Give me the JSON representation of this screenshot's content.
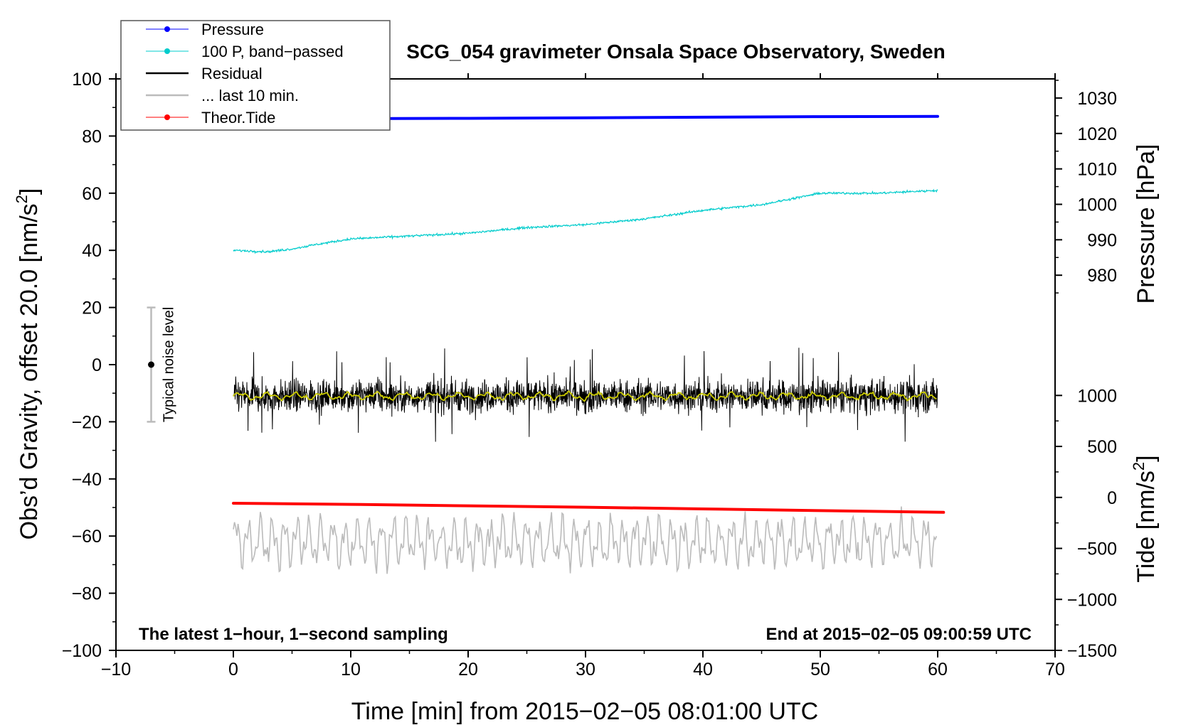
{
  "chart_data": {
    "type": "line",
    "title": "SCG_054 gravimeter Onsala Space Observatory, Sweden",
    "xlabel": "Time [min] from 2015−02−05 08:01:00 UTC",
    "ylabel_left_main": "Obs’d Gravity, offset 20.0 [nm/s",
    "ylabel_left_sup": "2",
    "ylabel_left_end": "]",
    "ylabel_right_pressure": "Pressure [hPa]",
    "ylabel_right_tide_main": "Tide [nm/s",
    "ylabel_right_tide_sup": "2",
    "ylabel_right_tide_end": "]",
    "xlim": [
      -10,
      70
    ],
    "ylim_left": [
      -100,
      100
    ],
    "x_ticks": [
      -10,
      0,
      10,
      20,
      30,
      40,
      50,
      60,
      70
    ],
    "x_tick_labels": [
      "−10",
      "0",
      "10",
      "20",
      "30",
      "40",
      "50",
      "60",
      "70"
    ],
    "y_left_ticks": [
      -100,
      -80,
      -60,
      -40,
      -20,
      0,
      20,
      40,
      60,
      80,
      100
    ],
    "y_left_tick_labels": [
      "−100",
      "−80",
      "−60",
      "−40",
      "−20",
      "0",
      "20",
      "40",
      "60",
      "80",
      "100"
    ],
    "pressure_axis_ticks": [
      980,
      990,
      1000,
      1010,
      1020,
      1030
    ],
    "pressure_axis_tick_labels": [
      "980",
      "990",
      "1000",
      "1010",
      "1020",
      "1030"
    ],
    "pressure_axis_range_hpa": [
      966,
      1037
    ],
    "tide_axis_ticks": [
      -1500,
      -1000,
      -500,
      0,
      500,
      1000
    ],
    "tide_axis_tick_labels": [
      "−1500",
      "−1000",
      "−500",
      "0",
      "500",
      "1000"
    ],
    "tide_axis_range": [
      -1500,
      1100
    ],
    "legend": [
      {
        "label": "Pressure",
        "color": "#0000ff",
        "marker": true
      },
      {
        "label": "100 P, band−passed",
        "color": "#00cccc",
        "marker": true
      },
      {
        "label": "Residual",
        "color": "#000000",
        "marker": false
      },
      {
        "label": "... last 10 min.",
        "color": "#bbbbbb",
        "marker": false
      },
      {
        "label": "Theor.Tide",
        "color": "#ff0000",
        "marker": true
      }
    ],
    "legend_position": "top-left",
    "series": [
      {
        "name": "Pressure",
        "color": "#0000ff",
        "x": [
          0,
          10,
          20,
          30,
          40,
          50,
          60
        ],
        "y": [
          86.0,
          86.1,
          86.2,
          86.4,
          86.6,
          86.8,
          86.9
        ]
      },
      {
        "name": "100 P, band−passed",
        "color": "#00cccc",
        "x": [
          0,
          3,
          5,
          7,
          10,
          15,
          20,
          25,
          30,
          35,
          40,
          45,
          50,
          55,
          60
        ],
        "y": [
          40,
          39.5,
          40.5,
          42,
          44,
          45,
          46,
          48,
          49,
          51,
          54,
          56,
          60,
          60,
          61
        ]
      },
      {
        "name": "Residual",
        "color": "#000000",
        "mean": -11,
        "min": -27,
        "max": 7,
        "x_range": [
          0,
          60
        ]
      },
      {
        "name": "Residual smoothed",
        "color": "#cccc00",
        "mean": -11,
        "x_range": [
          0,
          60
        ]
      },
      {
        "name": "... last 10 min.",
        "color": "#bbbbbb",
        "mean": -62,
        "min": -76,
        "max": -47,
        "x_range": [
          0,
          60
        ]
      },
      {
        "name": "Theor.Tide",
        "color": "#ff0000",
        "x": [
          0,
          10,
          20,
          30,
          40,
          50,
          60.5
        ],
        "y": [
          -48.5,
          -48.9,
          -49.4,
          -49.9,
          -50.5,
          -51.1,
          -51.7
        ]
      }
    ],
    "noise_bar": {
      "x": -7,
      "center": 0,
      "half_range": 20,
      "label": "Typical noise level"
    },
    "note_left": "The latest 1−hour, 1−second sampling",
    "note_right": "End at 2015−02−05 09:00:59 UTC"
  }
}
